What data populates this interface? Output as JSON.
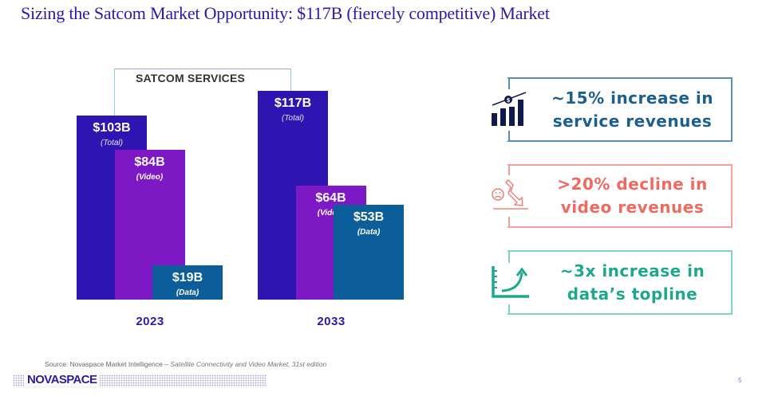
{
  "title": "Sizing the Satcom Market Opportunity: $117B (fiercely competitive) Market",
  "chart_data": {
    "type": "bar",
    "title": "SATCOM SERVICES",
    "categories": [
      "2023",
      "2033"
    ],
    "unit": "$B",
    "series": [
      {
        "name": "Total",
        "color": "#2e14b0",
        "values": [
          103,
          117
        ],
        "labels": [
          "$103B",
          "$117B"
        ],
        "sublabel": "(Total)"
      },
      {
        "name": "Video",
        "color": "#7d19c4",
        "values": [
          84,
          64
        ],
        "labels": [
          "$84B",
          "$64B"
        ],
        "sublabel": "(Video)"
      },
      {
        "name": "Data",
        "color": "#0b5e9a",
        "values": [
          19,
          53
        ],
        "labels": [
          "$19B",
          "$53B"
        ],
        "sublabel": "(Data)"
      }
    ],
    "xlabel": "",
    "ylabel": "",
    "grid": false
  },
  "callouts": [
    {
      "icon": "revenue-growth-icon",
      "text_line1": "~15% increase in",
      "text_line2": "service revenues",
      "color": "#1b5f91",
      "border": "#5d8fb5"
    },
    {
      "icon": "sad-decline-icon",
      "text_line1": ">20% decline in",
      "text_line2": "video revenues",
      "color": "#f06a62",
      "border": "#f4a09b"
    },
    {
      "icon": "growth-curve-icon",
      "text_line1": "~3x increase in",
      "text_line2": "data’s topline",
      "color": "#1fa88e",
      "border": "#7fd3c3"
    }
  ],
  "footer": {
    "source_prefix": "Source: Novaspace Market Intelligence – ",
    "source_italic": "Satellite Connectivity and Video Market, 31st edition",
    "logo": "NOVASPACE",
    "page_number": "5"
  }
}
